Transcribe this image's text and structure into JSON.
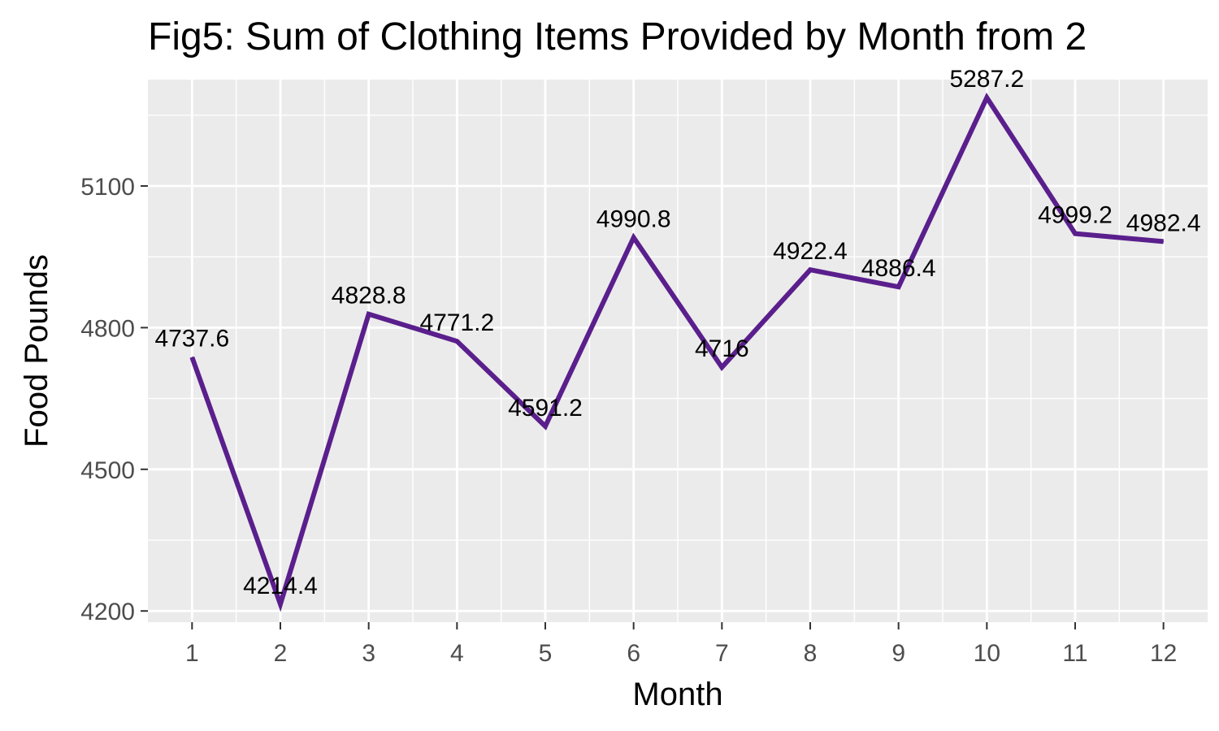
{
  "chart_data": {
    "type": "line",
    "title": "Fig5: Sum of Clothing Items Provided by Month from 2",
    "xlabel": "Month",
    "ylabel": "Food Pounds",
    "x": [
      1,
      2,
      3,
      4,
      5,
      6,
      7,
      8,
      9,
      10,
      11,
      12
    ],
    "x_tick_labels": [
      "1",
      "2",
      "3",
      "4",
      "5",
      "6",
      "7",
      "8",
      "9",
      "10",
      "11",
      "12"
    ],
    "y_ticks": [
      4200,
      4500,
      4800,
      5100
    ],
    "y_tick_labels": [
      "4200",
      "4500",
      "4800",
      "5100"
    ],
    "values": [
      4737.6,
      4214.4,
      4828.8,
      4771.2,
      4591.2,
      4990.8,
      4716,
      4922.4,
      4886.4,
      5287.2,
      4999.2,
      4982.4
    ],
    "data_labels": [
      "4737.6",
      "4214.4",
      "4828.8",
      "4771.2",
      "4591.2",
      "4990.8",
      "4716",
      "4922.4",
      "4886.4",
      "5287.2",
      "4999.2",
      "4982.4"
    ],
    "xlim": [
      0.5,
      12.5
    ],
    "ylim": [
      4176.3,
      5325.3
    ],
    "grid": true,
    "line_color": "#5a1f8c",
    "panel_background": "#ebebeb",
    "grid_color": "#ffffff",
    "tick_label_color": "#4d4d4d"
  }
}
